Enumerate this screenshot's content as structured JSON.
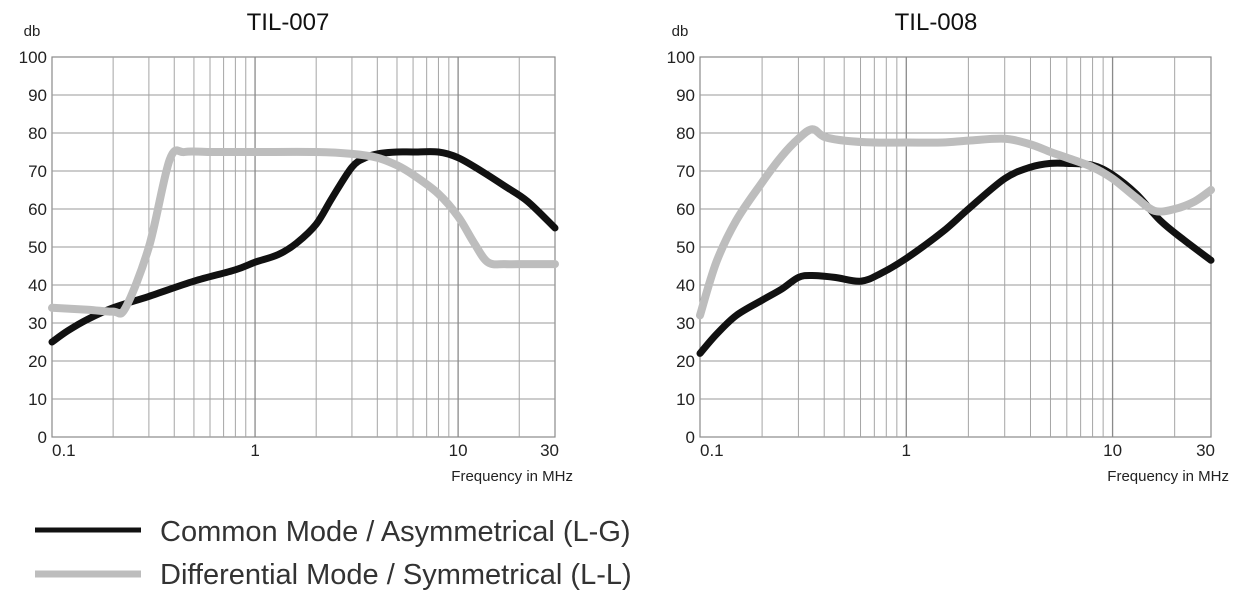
{
  "chart_data": [
    {
      "type": "line",
      "title": "TIL-007",
      "xlabel": "Frequency in MHz",
      "ylabel": "db",
      "x_scale": "log",
      "xlim": [
        0.1,
        30
      ],
      "ylim": [
        0,
        100
      ],
      "x_ticks": [
        0.1,
        1,
        10,
        30
      ],
      "x_tick_labels": [
        "0.1",
        "1",
        "10",
        "30"
      ],
      "y_ticks": [
        0,
        10,
        20,
        30,
        40,
        50,
        60,
        70,
        80,
        90,
        100
      ],
      "y_tick_labels": [
        "0",
        "10",
        "20",
        "30",
        "40",
        "50",
        "60",
        "70",
        "80",
        "90",
        "100"
      ],
      "grid": true,
      "series": [
        {
          "name": "Common Mode / Asymmetrical (L-G)",
          "color": "#111111",
          "x": [
            0.1,
            0.12,
            0.15,
            0.2,
            0.3,
            0.5,
            0.8,
            1.0,
            1.3,
            1.6,
            2.0,
            2.4,
            3.0,
            3.5,
            4.0,
            5.0,
            6.0,
            8.0,
            10.0,
            13.0,
            17.0,
            22.0,
            30.0
          ],
          "y": [
            25,
            28,
            31,
            34,
            37,
            41,
            44,
            46,
            48,
            51,
            56,
            63,
            71,
            73.5,
            74.5,
            75,
            75,
            75,
            73.5,
            70,
            66,
            62,
            55
          ]
        },
        {
          "name": "Differential Mode / Symmetrical (L-L)",
          "color": "#bdbdbd",
          "x": [
            0.1,
            0.15,
            0.2,
            0.23,
            0.3,
            0.38,
            0.45,
            0.6,
            1.0,
            2.0,
            3.0,
            4.0,
            5.0,
            6.0,
            8.0,
            10.0,
            12.0,
            14.0,
            17.0,
            22.0,
            30.0
          ],
          "y": [
            34,
            33.5,
            33,
            34,
            50,
            73,
            75,
            75,
            75,
            75,
            74.5,
            73.5,
            71.5,
            69,
            64,
            58,
            51,
            46,
            45.5,
            45.5,
            45.5
          ]
        }
      ]
    },
    {
      "type": "line",
      "title": "TIL-008",
      "xlabel": "Frequency in MHz",
      "ylabel": "db",
      "x_scale": "log",
      "xlim": [
        0.1,
        30
      ],
      "ylim": [
        0,
        100
      ],
      "x_ticks": [
        0.1,
        1,
        10,
        30
      ],
      "x_tick_labels": [
        "0.1",
        "1",
        "10",
        "30"
      ],
      "y_ticks": [
        0,
        10,
        20,
        30,
        40,
        50,
        60,
        70,
        80,
        90,
        100
      ],
      "y_tick_labels": [
        "0",
        "10",
        "20",
        "30",
        "40",
        "50",
        "60",
        "70",
        "80",
        "90",
        "100"
      ],
      "grid": true,
      "series": [
        {
          "name": "Common Mode / Asymmetrical (L-G)",
          "color": "#111111",
          "x": [
            0.1,
            0.12,
            0.15,
            0.2,
            0.25,
            0.3,
            0.35,
            0.45,
            0.6,
            0.75,
            1.0,
            1.5,
            2.0,
            3.0,
            4.0,
            5.0,
            6.0,
            8.0,
            10.0,
            13.0,
            17.0,
            22.0,
            30.0
          ],
          "y": [
            22,
            27,
            32,
            36,
            39,
            42,
            42.5,
            42,
            41,
            43,
            47,
            54,
            60,
            68,
            71,
            72,
            72,
            71.5,
            69,
            64,
            57,
            52,
            46.5
          ]
        },
        {
          "name": "Differential Mode / Symmetrical (L-L)",
          "color": "#bdbdbd",
          "x": [
            0.1,
            0.12,
            0.15,
            0.2,
            0.25,
            0.3,
            0.35,
            0.4,
            0.5,
            0.7,
            1.0,
            1.5,
            2.0,
            3.0,
            4.0,
            5.0,
            6.0,
            8.0,
            10.0,
            13.0,
            16.0,
            20.0,
            25.0,
            30.0
          ],
          "y": [
            32,
            46,
            57,
            67,
            74,
            78.5,
            81,
            79,
            78,
            77.5,
            77.5,
            77.5,
            78,
            78.5,
            77,
            75,
            73.5,
            71,
            68,
            63,
            59.5,
            60,
            62,
            65
          ]
        }
      ]
    }
  ],
  "legend": {
    "placement": "bottom-left",
    "items": [
      {
        "label": "Common Mode / Asymmetrical (L-G)",
        "color": "#111111"
      },
      {
        "label": "Differential Mode / Symmetrical (L-L)",
        "color": "#bdbdbd"
      }
    ]
  }
}
